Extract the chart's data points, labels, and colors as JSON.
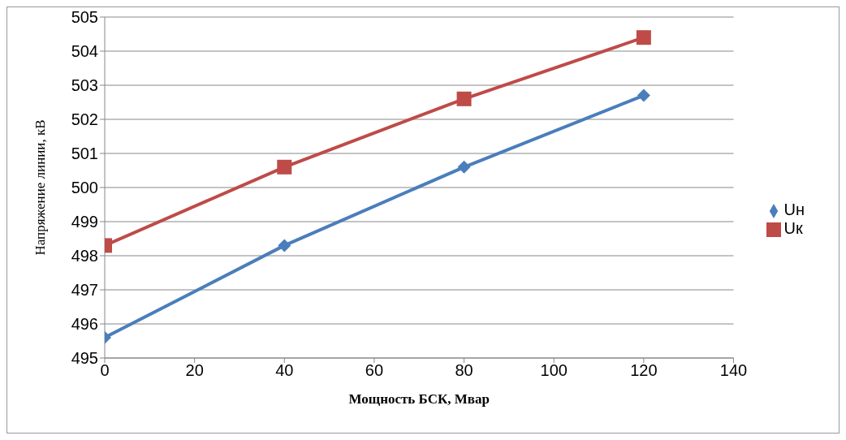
{
  "chart_data": {
    "type": "line",
    "xlabel": "Мощность БСК, Мвар",
    "ylabel": "Напряжение линии, кВ",
    "x": [
      0,
      40,
      80,
      120
    ],
    "series": [
      {
        "name": "Uн",
        "color": "#4a7ebb",
        "marker": "diamond",
        "values": [
          495.6,
          498.3,
          500.6,
          502.7
        ]
      },
      {
        "name": "Uк",
        "color": "#be4b48",
        "marker": "square",
        "values": [
          498.3,
          500.6,
          502.6,
          504.4
        ]
      }
    ],
    "xlim": [
      0,
      140
    ],
    "xticks": [
      0,
      20,
      40,
      60,
      80,
      100,
      120,
      140
    ],
    "ylim": [
      495,
      505
    ],
    "yticks": [
      495,
      496,
      497,
      498,
      499,
      500,
      501,
      502,
      503,
      504,
      505
    ],
    "grid": "y",
    "legend": "right",
    "line_style": "solid"
  }
}
